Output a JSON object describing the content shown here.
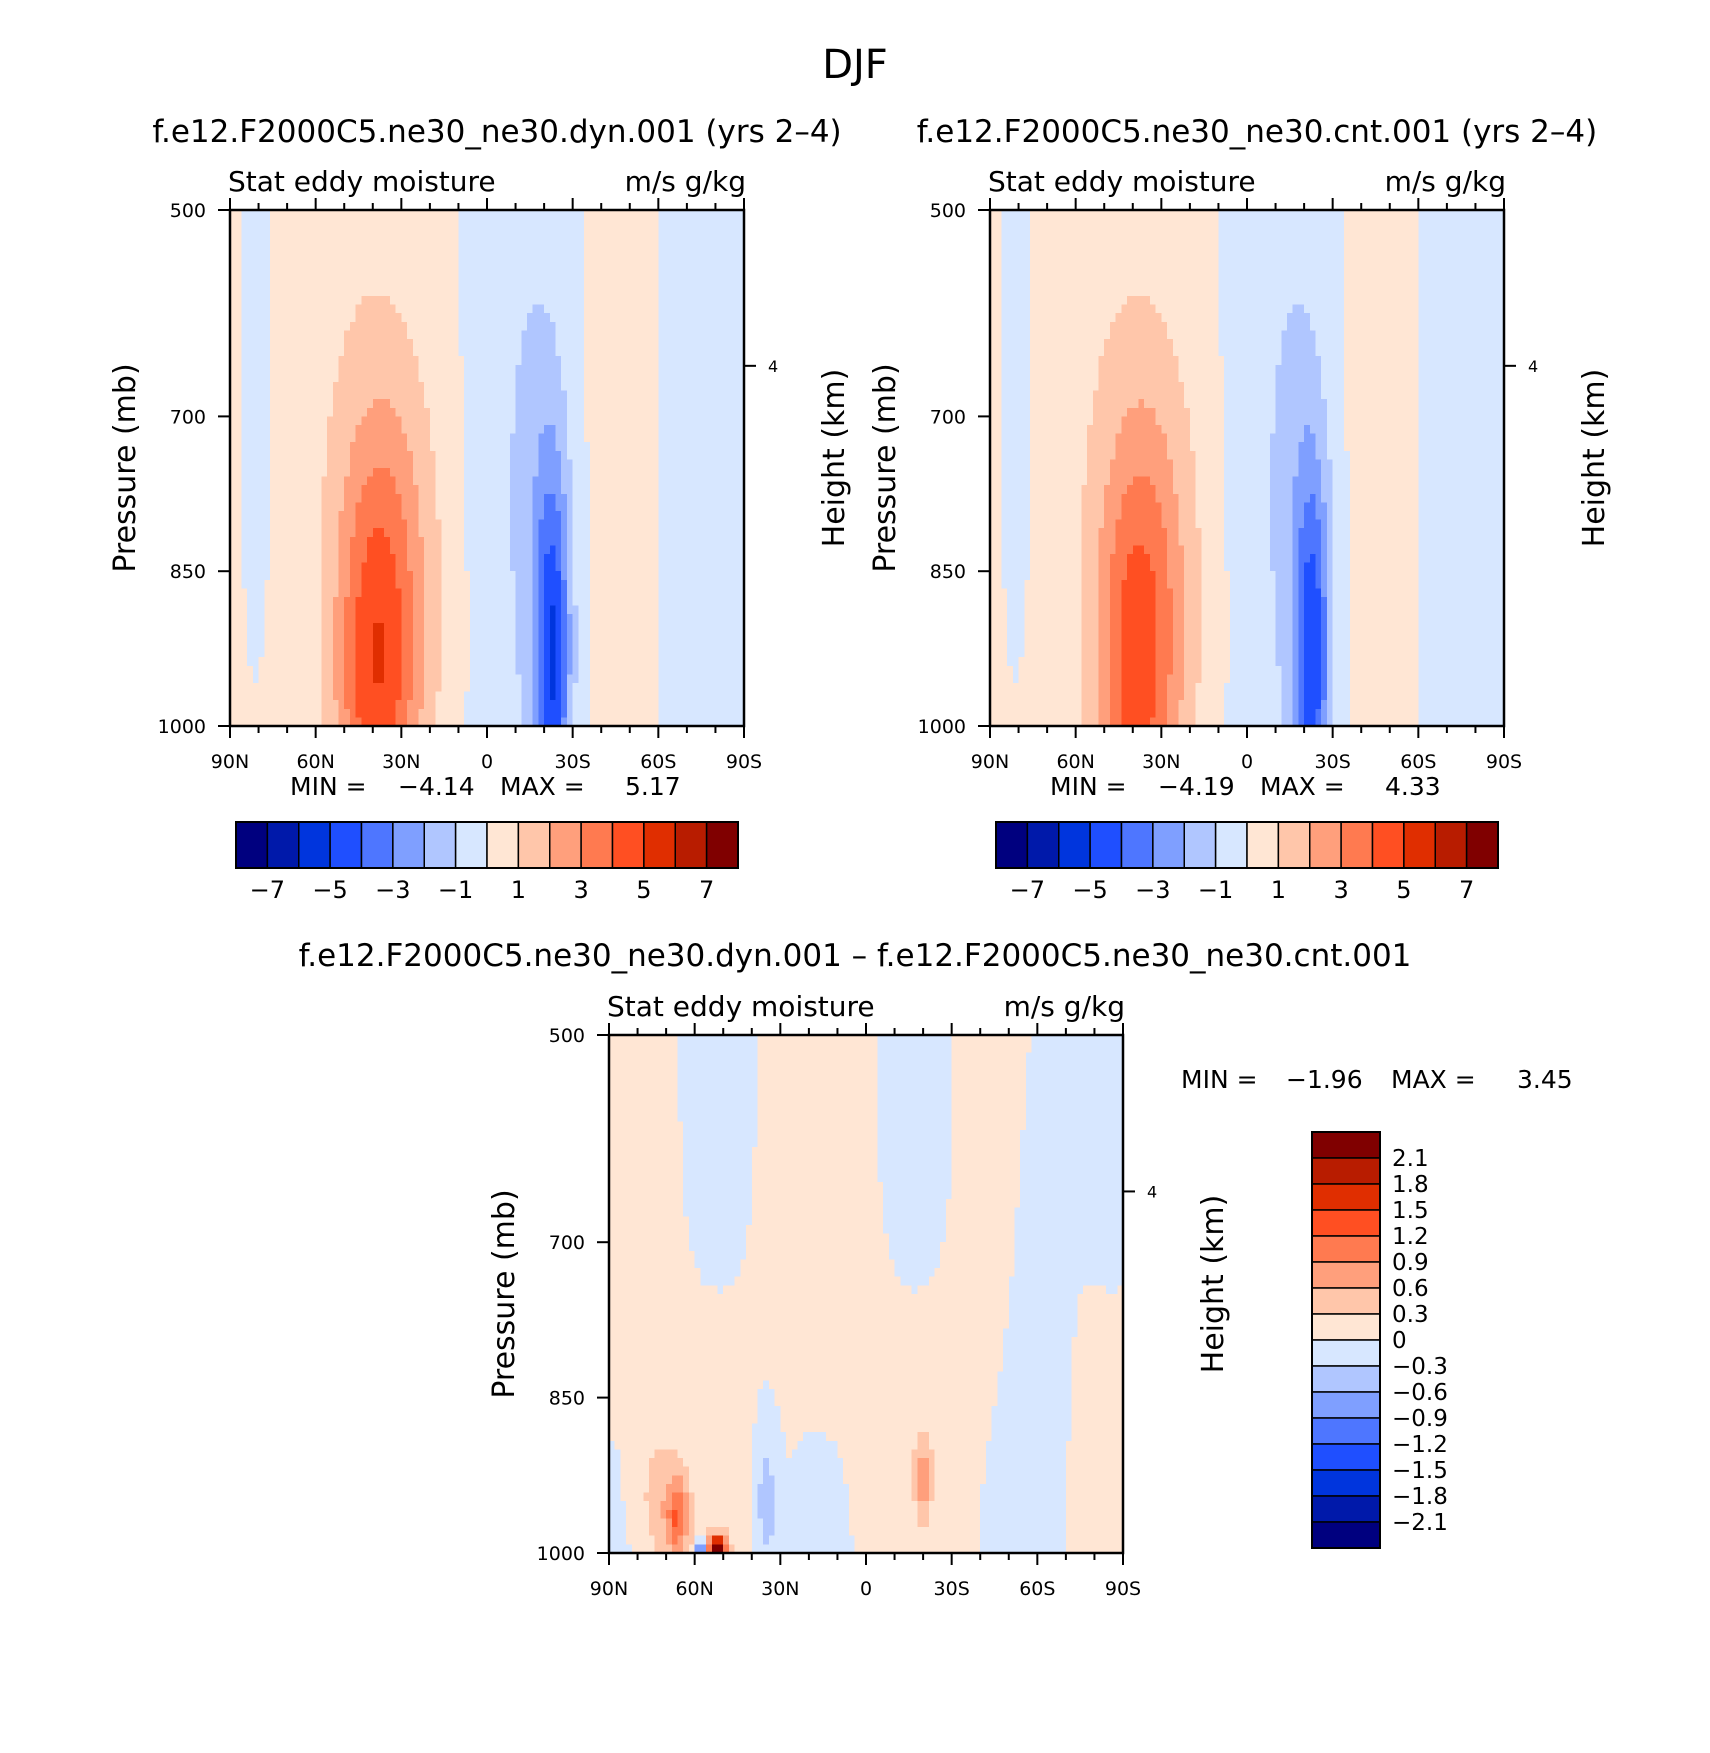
{
  "figure_title": "DJF",
  "chart_data": [
    {
      "type": "heatmap",
      "id": "panel-a",
      "title": "f.e12.F2000C5.ne30_ne30.dyn.001 (yrs 2–4)",
      "left_string": "Stat eddy moisture",
      "right_string": "m/s g/kg",
      "xlabel": "",
      "ylabel": "Pressure (mb)",
      "y2label": "Height (km)",
      "xlim": [
        90,
        -90
      ],
      "ylim": [
        1000,
        500
      ],
      "xticks": [
        90,
        60,
        30,
        0,
        -30,
        -60,
        -90
      ],
      "xticklabels": [
        "90N",
        "60N",
        "30N",
        "0",
        "30S",
        "60S",
        "90S"
      ],
      "yticks": [
        500,
        700,
        850,
        1000
      ],
      "yticklabels": [
        "500",
        "700",
        "850",
        "1000"
      ],
      "y2ticklabels": [
        "4"
      ],
      "stats": {
        "min_label": "MIN =",
        "min": "−4.14",
        "max_label": "MAX =",
        "max": "5.17"
      },
      "colorbar": {
        "orientation": "horizontal",
        "colors": [
          "#00007f",
          "#0019aa",
          "#0035dd",
          "#1f4fff",
          "#4e76ff",
          "#7f9fff",
          "#b0c6ff",
          "#d7e7ff",
          "#ffe6d4",
          "#ffc6aa",
          "#ff9f7c",
          "#ff7a50",
          "#ff4f22",
          "#e02e00",
          "#b81c00",
          "#800000"
        ],
        "tick_labels": [
          "−7",
          "−5",
          "−3",
          "−1",
          "1",
          "3",
          "5",
          "7"
        ]
      }
    },
    {
      "type": "heatmap",
      "id": "panel-b",
      "title": "f.e12.F2000C5.ne30_ne30.cnt.001 (yrs 2–4)",
      "left_string": "Stat eddy moisture",
      "right_string": "m/s g/kg",
      "xlabel": "",
      "ylabel": "Pressure (mb)",
      "y2label": "Height (km)",
      "xlim": [
        90,
        -90
      ],
      "ylim": [
        1000,
        500
      ],
      "xticks": [
        90,
        60,
        30,
        0,
        -30,
        -60,
        -90
      ],
      "xticklabels": [
        "90N",
        "60N",
        "30N",
        "0",
        "30S",
        "60S",
        "90S"
      ],
      "yticks": [
        500,
        700,
        850,
        1000
      ],
      "yticklabels": [
        "500",
        "700",
        "850",
        "1000"
      ],
      "y2ticklabels": [
        "4"
      ],
      "stats": {
        "min_label": "MIN =",
        "min": "−4.19",
        "max_label": "MAX =",
        "max": "4.33"
      },
      "colorbar": {
        "orientation": "horizontal",
        "colors": [
          "#00007f",
          "#0019aa",
          "#0035dd",
          "#1f4fff",
          "#4e76ff",
          "#7f9fff",
          "#b0c6ff",
          "#d7e7ff",
          "#ffe6d4",
          "#ffc6aa",
          "#ff9f7c",
          "#ff7a50",
          "#ff4f22",
          "#e02e00",
          "#b81c00",
          "#800000"
        ],
        "tick_labels": [
          "−7",
          "−5",
          "−3",
          "−1",
          "1",
          "3",
          "5",
          "7"
        ]
      }
    },
    {
      "type": "heatmap",
      "id": "panel-c",
      "title": "f.e12.F2000C5.ne30_ne30.dyn.001 – f.e12.F2000C5.ne30_ne30.cnt.001",
      "left_string": "Stat eddy moisture",
      "right_string": "m/s g/kg",
      "xlabel": "",
      "ylabel": "Pressure (mb)",
      "y2label": "Height (km)",
      "xlim": [
        90,
        -90
      ],
      "ylim": [
        1000,
        500
      ],
      "xticks": [
        90,
        60,
        30,
        0,
        -30,
        -60,
        -90
      ],
      "xticklabels": [
        "90N",
        "60N",
        "30N",
        "0",
        "30S",
        "60S",
        "90S"
      ],
      "yticks": [
        500,
        700,
        850,
        1000
      ],
      "yticklabels": [
        "500",
        "700",
        "850",
        "1000"
      ],
      "y2ticklabels": [
        "4"
      ],
      "stats": {
        "min_label": "MIN =",
        "min": "−1.96",
        "max_label": "MAX =",
        "max": "3.45"
      },
      "colorbar": {
        "orientation": "vertical",
        "colors": [
          "#00007f",
          "#0019aa",
          "#0035dd",
          "#1f4fff",
          "#4e76ff",
          "#7f9fff",
          "#b0c6ff",
          "#d7e7ff",
          "#ffe6d4",
          "#ffc6aa",
          "#ff9f7c",
          "#ff7a50",
          "#ff4f22",
          "#e02e00",
          "#b81c00",
          "#800000"
        ],
        "tick_labels": [
          "2.1",
          "1.8",
          "1.5",
          "1.2",
          "0.9",
          "0.6",
          "0.3",
          "0",
          "−0.3",
          "−0.6",
          "−0.9",
          "−1.2",
          "−1.5",
          "−1.8",
          "−2.1"
        ]
      }
    }
  ]
}
